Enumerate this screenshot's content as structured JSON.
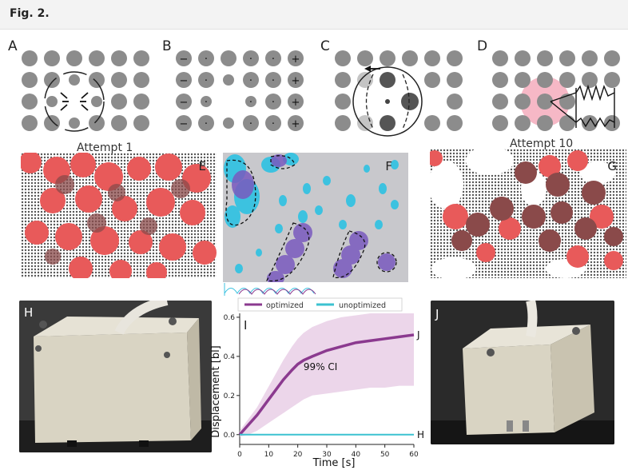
{
  "header": {
    "figure_label": "Fig. 2."
  },
  "panels": {
    "A": "A",
    "B": "B",
    "C": "C",
    "D": "D",
    "E": "E",
    "F": "F",
    "G": "G",
    "H": "H",
    "I": "I",
    "J": "J"
  },
  "captions": {
    "attempt_1": "Attempt 1",
    "attempt_10": "Attempt 10"
  },
  "panel_b_signs": {
    "minus": "−",
    "dot": "·",
    "plus": "+"
  },
  "colors": {
    "disk_gray": "#8c8c8c",
    "blob_red": "#e85a5a",
    "blob_dark": "#8a4a4a",
    "optimized": "#8b3a8f",
    "unoptimized": "#3cc2d0",
    "ci_band": "#e9cfe6",
    "pink_region": "#f6b8c6",
    "cyan_blob": "#3cc2e0"
  },
  "chart_data": {
    "type": "line",
    "xlabel": "Time [s]",
    "ylabel": "Displacement [bl]",
    "xlim": [
      0,
      60
    ],
    "ylim": [
      -0.05,
      0.62
    ],
    "xticks": [
      "0",
      "10",
      "20",
      "30",
      "40",
      "50",
      "60"
    ],
    "yticks": [
      "0.0",
      "0.2",
      "0.4",
      "0.6"
    ],
    "annotation": "99% CI",
    "legend_placement": "top",
    "series": [
      {
        "name": "optimized",
        "end_label": "J",
        "x": [
          0,
          3,
          6,
          9,
          12,
          15,
          18,
          20,
          22,
          25,
          30,
          35,
          40,
          45,
          50,
          55,
          60
        ],
        "y": [
          0.0,
          0.05,
          0.1,
          0.16,
          0.22,
          0.28,
          0.33,
          0.36,
          0.38,
          0.4,
          0.43,
          0.45,
          0.47,
          0.48,
          0.49,
          0.5,
          0.51
        ],
        "upper": [
          0.02,
          0.08,
          0.14,
          0.22,
          0.3,
          0.38,
          0.45,
          0.49,
          0.52,
          0.55,
          0.58,
          0.6,
          0.61,
          0.62,
          0.62,
          0.62,
          0.62
        ],
        "lower": [
          -0.01,
          0.0,
          0.02,
          0.05,
          0.08,
          0.11,
          0.14,
          0.16,
          0.18,
          0.2,
          0.21,
          0.22,
          0.23,
          0.24,
          0.24,
          0.25,
          0.25
        ]
      },
      {
        "name": "unoptimized",
        "end_label": "H",
        "x": [
          0,
          60
        ],
        "y": [
          0.0,
          0.0
        ]
      }
    ]
  }
}
